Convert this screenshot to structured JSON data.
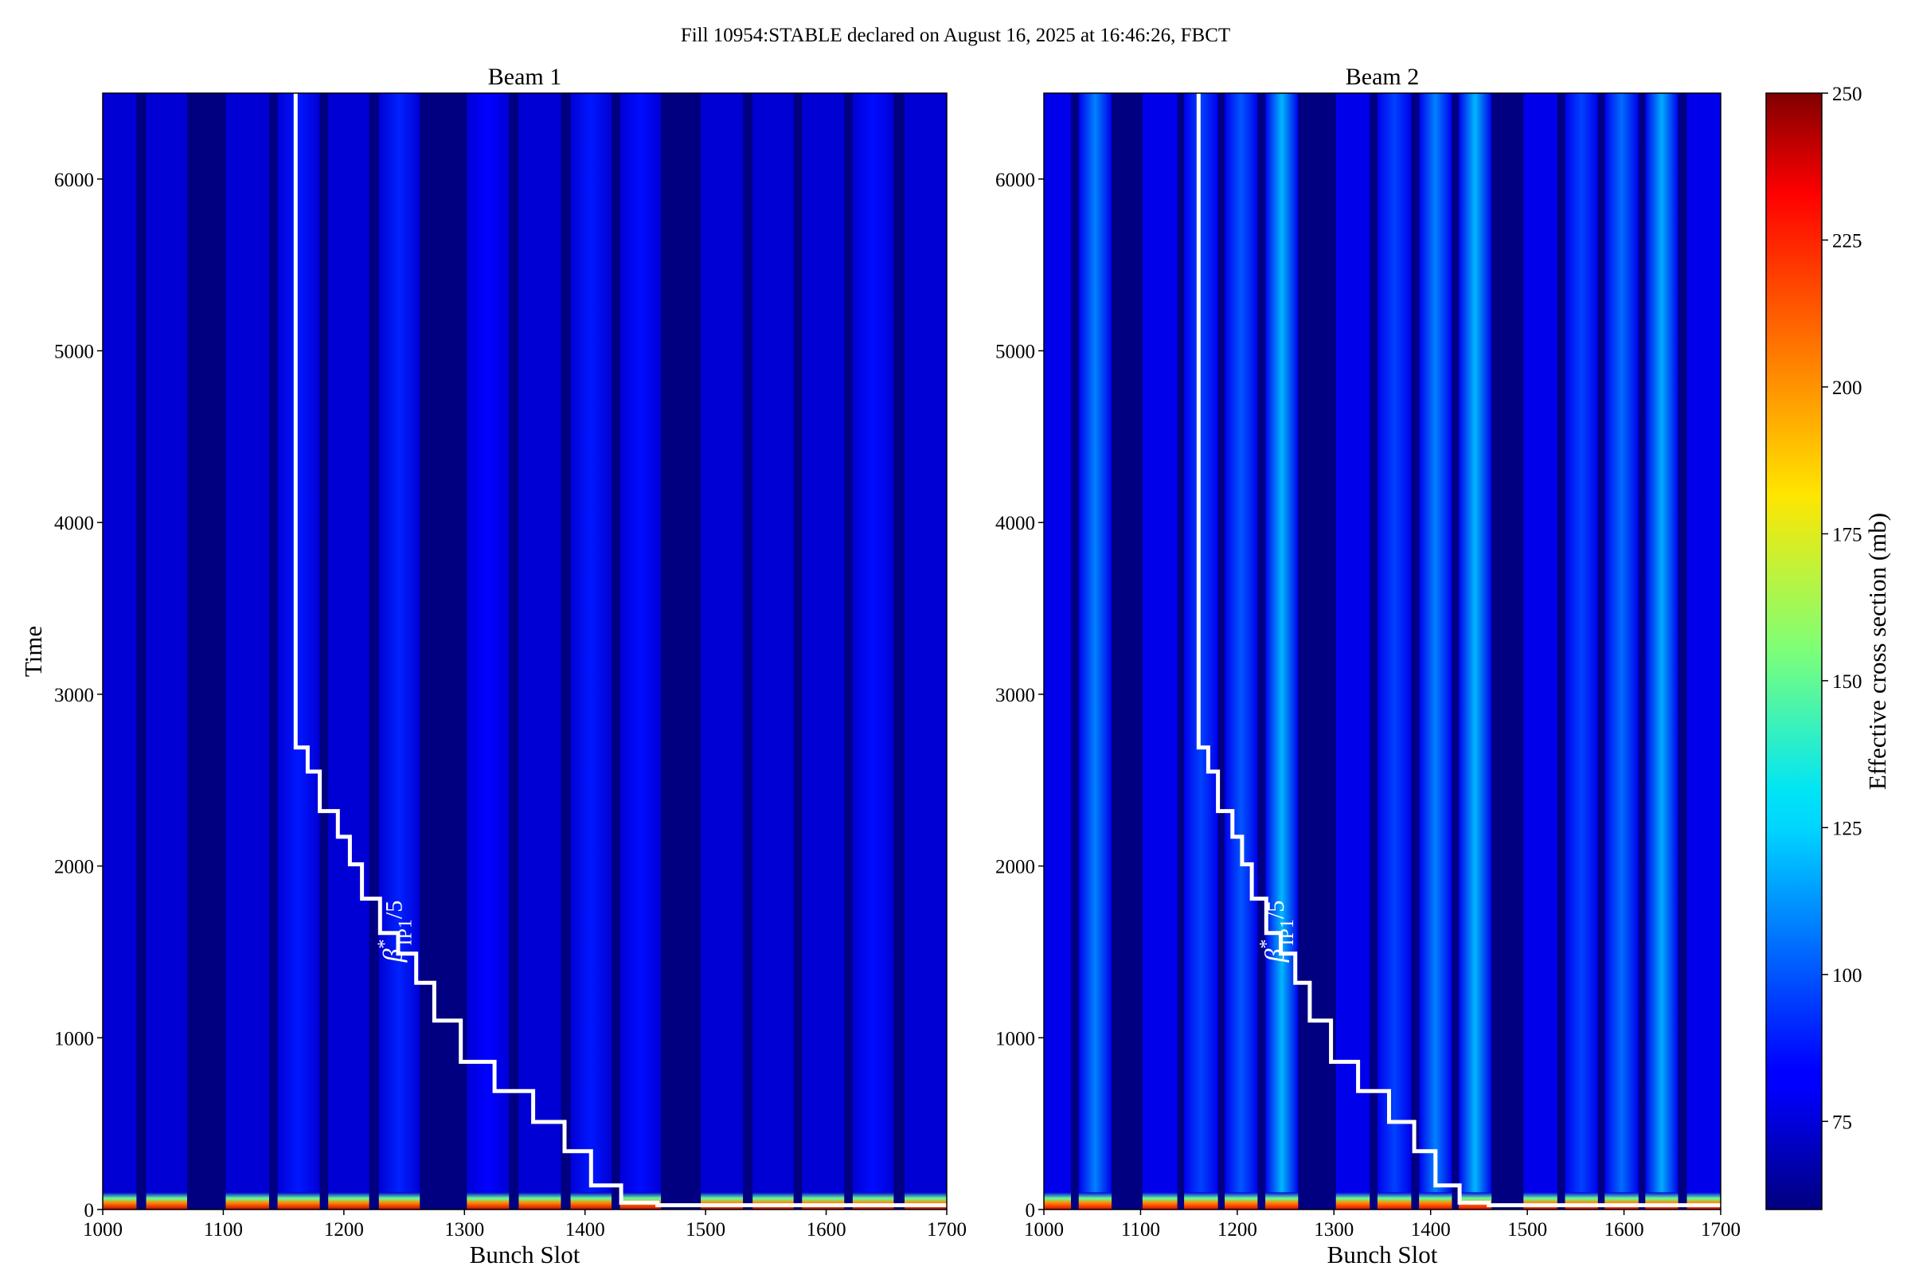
{
  "figure": {
    "title": "Fill 10954:STABLE declared on August 16, 2025 at 16:46:26, FBCT"
  },
  "chart_data": [
    {
      "type": "heatmap",
      "panel": "left",
      "title": "Beam 1",
      "xlabel": "Bunch Slot",
      "ylabel": "Time",
      "xlim": [
        1000,
        1700
      ],
      "ylim": [
        0,
        6500
      ],
      "xticks": [
        1000,
        1100,
        1200,
        1300,
        1400,
        1500,
        1600,
        1700
      ],
      "yticks": [
        0,
        1000,
        2000,
        3000,
        4000,
        5000,
        6000
      ],
      "filled_bands": [
        [
          1000,
          1028
        ],
        [
          1036,
          1070
        ],
        [
          1102,
          1138
        ],
        [
          1145,
          1180
        ],
        [
          1187,
          1221
        ],
        [
          1229,
          1263
        ],
        [
          1302,
          1337
        ],
        [
          1345,
          1380
        ],
        [
          1388,
          1422
        ],
        [
          1429,
          1463
        ],
        [
          1496,
          1531
        ],
        [
          1539,
          1573
        ],
        [
          1580,
          1615
        ],
        [
          1622,
          1656
        ],
        [
          1665,
          1700
        ]
      ],
      "empty_value": 60,
      "base_value": 76,
      "start_hot_value": 235,
      "highlight_bands": [
        [
          1145,
          1180,
          88
        ],
        [
          1229,
          1263,
          90
        ],
        [
          1302,
          1337,
          84
        ],
        [
          1388,
          1422,
          88
        ],
        [
          1429,
          1463,
          86
        ],
        [
          1622,
          1656,
          86
        ]
      ],
      "annotation": {
        "text_main": "β",
        "text_sup": "*",
        "text_sub": "IP1",
        "text_tail": "/5",
        "x": 1248,
        "y": 1620
      },
      "beta_star_step": {
        "x": [
          1160,
          1160,
          1170,
          1170,
          1180,
          1180,
          1195,
          1195,
          1205,
          1205,
          1215,
          1215,
          1230,
          1230,
          1245,
          1245,
          1260,
          1260,
          1275,
          1275,
          1297,
          1297,
          1325,
          1325,
          1357,
          1357,
          1383,
          1383,
          1405,
          1405,
          1430,
          1430,
          1460,
          1460,
          1700
        ],
        "y": [
          6500,
          2690,
          2690,
          2550,
          2550,
          2320,
          2320,
          2170,
          2170,
          2010,
          2010,
          1810,
          1810,
          1610,
          1610,
          1490,
          1490,
          1320,
          1320,
          1100,
          1100,
          860,
          860,
          690,
          690,
          510,
          510,
          340,
          340,
          140,
          140,
          40,
          40,
          25,
          25
        ]
      }
    },
    {
      "type": "heatmap",
      "panel": "right",
      "title": "Beam 2",
      "xlabel": "Bunch Slot",
      "xlim": [
        1000,
        1700
      ],
      "ylim": [
        0,
        6500
      ],
      "xticks": [
        1000,
        1100,
        1200,
        1300,
        1400,
        1500,
        1600,
        1700
      ],
      "yticks": [
        0,
        1000,
        2000,
        3000,
        4000,
        5000,
        6000
      ],
      "filled_bands": [
        [
          1000,
          1028
        ],
        [
          1036,
          1070
        ],
        [
          1102,
          1138
        ],
        [
          1145,
          1180
        ],
        [
          1187,
          1221
        ],
        [
          1229,
          1263
        ],
        [
          1302,
          1337
        ],
        [
          1345,
          1380
        ],
        [
          1388,
          1422
        ],
        [
          1429,
          1463
        ],
        [
          1496,
          1531
        ],
        [
          1539,
          1573
        ],
        [
          1580,
          1615
        ],
        [
          1622,
          1656
        ],
        [
          1665,
          1700
        ]
      ],
      "empty_value": 60,
      "base_value": 80,
      "start_hot_value": 230,
      "highlight_bands": [
        [
          1036,
          1070,
          108
        ],
        [
          1145,
          1180,
          96
        ],
        [
          1187,
          1221,
          100
        ],
        [
          1229,
          1263,
          118
        ],
        [
          1345,
          1380,
          96
        ],
        [
          1388,
          1422,
          108
        ],
        [
          1429,
          1463,
          118
        ],
        [
          1539,
          1573,
          96
        ],
        [
          1580,
          1615,
          104
        ],
        [
          1622,
          1656,
          116
        ]
      ],
      "annotation": {
        "text_main": "β",
        "text_sup": "*",
        "text_sub": "IP1",
        "text_tail": "/5",
        "x": 1248,
        "y": 1620
      },
      "beta_star_step": {
        "x": [
          1160,
          1160,
          1170,
          1170,
          1180,
          1180,
          1195,
          1195,
          1205,
          1205,
          1215,
          1215,
          1230,
          1230,
          1245,
          1245,
          1260,
          1260,
          1275,
          1275,
          1297,
          1297,
          1325,
          1325,
          1357,
          1357,
          1383,
          1383,
          1405,
          1405,
          1430,
          1430,
          1460,
          1460,
          1700
        ],
        "y": [
          6500,
          2690,
          2690,
          2550,
          2550,
          2320,
          2320,
          2170,
          2170,
          2010,
          2010,
          1810,
          1810,
          1610,
          1610,
          1490,
          1490,
          1320,
          1320,
          1100,
          1100,
          860,
          860,
          690,
          690,
          510,
          510,
          340,
          340,
          140,
          140,
          40,
          40,
          25,
          25
        ]
      }
    }
  ],
  "colorbar": {
    "label": "Effective cross section (mb)",
    "range": [
      60,
      250
    ],
    "ticks": [
      75,
      100,
      125,
      150,
      175,
      200,
      225,
      250
    ],
    "colormap": "jet"
  }
}
